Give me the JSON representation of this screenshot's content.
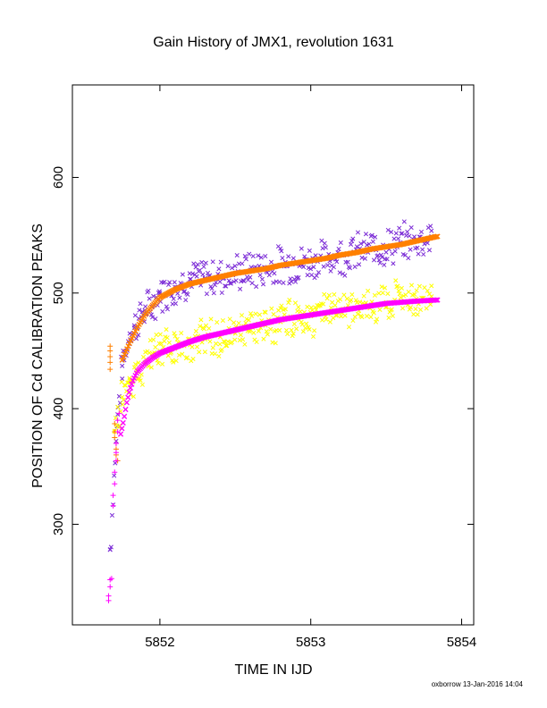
{
  "chart_data": {
    "type": "scatter",
    "title": "Gain History of JMX1, revolution 1631",
    "xlabel": "TIME IN IJD",
    "ylabel": "POSITION OF Cd CALIBRATION PEAKS",
    "xlim": [
      5851.42,
      5854.08
    ],
    "ylim": [
      213,
      680
    ],
    "x_ticks": [
      5852,
      5853,
      5854
    ],
    "y_ticks": [
      300,
      400,
      500,
      600
    ],
    "grid": false,
    "legend": "none",
    "credit": "oxborrow 13-Jan-2016 14:04",
    "colors": {
      "upper_points": "#7b2bd6",
      "upper_fit": "#ff8000",
      "lower_points": "#ffff00",
      "lower_fit": "#ff00ff",
      "early_upper_plus": "#ff8000",
      "early_lower_plus": "#ff00ff"
    },
    "series": [
      {
        "marker": "x",
        "color": "#7b2bd6",
        "x": [
          5851.67,
          5851.72,
          5851.75,
          5851.78,
          5851.8,
          5851.83,
          5851.86,
          5851.9,
          5851.95,
          5852.0,
          5852.1,
          5852.2,
          5852.3,
          5852.4,
          5852.5,
          5852.6,
          5852.7,
          5852.8,
          5852.9,
          5853.0,
          5853.1,
          5853.2,
          5853.3,
          5853.4,
          5853.5,
          5853.6,
          5853.7,
          5853.8
        ],
        "y": [
          278,
          395,
          437,
          452,
          465,
          470,
          478,
          485,
          488,
          500,
          505,
          512,
          513,
          515,
          517,
          520,
          522,
          524,
          525,
          527,
          530,
          533,
          535,
          538,
          540,
          543,
          546,
          549
        ]
      },
      {
        "marker": "fit",
        "color": "#ff8000",
        "x": [
          5851.75,
          5851.8,
          5851.85,
          5851.9,
          5851.95,
          5852.0,
          5852.1,
          5852.2,
          5852.3,
          5852.4,
          5852.5,
          5852.6,
          5852.7,
          5852.8,
          5852.9,
          5853.0,
          5853.1,
          5853.2,
          5853.3,
          5853.4,
          5853.5,
          5853.6,
          5853.7,
          5853.84
        ],
        "y": [
          442,
          457,
          470,
          481,
          489,
          496,
          503,
          508,
          511,
          514,
          517,
          519,
          521,
          524,
          526,
          528,
          530,
          533,
          535,
          538,
          540,
          542,
          545,
          549
        ]
      },
      {
        "marker": "x",
        "color": "#ffff00",
        "x": [
          5851.7,
          5851.75,
          5851.8,
          5851.85,
          5851.9,
          5851.95,
          5852.0,
          5852.1,
          5852.2,
          5852.3,
          5852.4,
          5852.5,
          5852.6,
          5852.7,
          5852.8,
          5852.9,
          5853.0,
          5853.1,
          5853.2,
          5853.3,
          5853.4,
          5853.5,
          5853.6,
          5853.7,
          5853.8
        ],
        "y": [
          380,
          410,
          425,
          432,
          440,
          445,
          450,
          452,
          455,
          460,
          462,
          465,
          468,
          472,
          475,
          478,
          480,
          483,
          485,
          487,
          490,
          492,
          493,
          495,
          497
        ]
      },
      {
        "marker": "fit",
        "color": "#ff00ff",
        "x": [
          5851.74,
          5851.76,
          5851.78,
          5851.8,
          5851.82,
          5851.85,
          5851.9,
          5851.95,
          5852.0,
          5852.1,
          5852.2,
          5852.3,
          5852.4,
          5852.5,
          5852.6,
          5852.7,
          5852.8,
          5852.9,
          5853.0,
          5853.1,
          5853.2,
          5853.3,
          5853.4,
          5853.5,
          5853.6,
          5853.7,
          5853.84
        ],
        "y": [
          378,
          390,
          405,
          416,
          424,
          432,
          439,
          444,
          448,
          453,
          458,
          462,
          465,
          468,
          471,
          474,
          477,
          479,
          481,
          483,
          485,
          487,
          489,
          491,
          492,
          493,
          494
        ]
      },
      {
        "marker": "+",
        "color": "#ff8000",
        "x": [
          5851.67,
          5851.67,
          5851.67,
          5851.67,
          5851.67,
          5851.7,
          5851.7,
          5851.7,
          5851.71,
          5851.71,
          5851.71,
          5851.72
        ],
        "y": [
          454,
          450,
          445,
          440,
          434,
          387,
          380,
          375,
          370,
          365,
          360,
          355
        ]
      },
      {
        "marker": "+",
        "color": "#ff00ff",
        "x": [
          5851.66,
          5851.66,
          5851.67,
          5851.67,
          5851.68,
          5851.69,
          5851.69,
          5851.7,
          5851.7,
          5851.71,
          5851.71,
          5851.71,
          5851.72,
          5851.72,
          5851.73
        ],
        "y": [
          234,
          238,
          246,
          252,
          253,
          316,
          325,
          335,
          345,
          355,
          362,
          370,
          380,
          390,
          396
        ]
      }
    ]
  }
}
